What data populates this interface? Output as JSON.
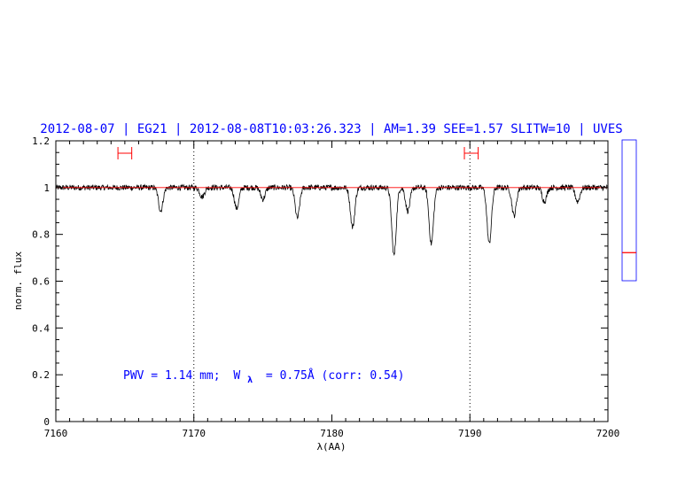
{
  "colors": {
    "axis": "#000000",
    "title": "#0000ff",
    "annotation": "#0000ff",
    "continuum": "#ff0000",
    "marker": "#ff0000",
    "indicator": "#0000ff",
    "spectrum": "#000000"
  },
  "chart_data": {
    "type": "line",
    "title": "2012-08-07 | EG21 | 2012-08-08T10:03:26.323 | AM=1.39 SEE=1.57 SLITW=10 | UVES",
    "xlabel": "λ(AA)",
    "ylabel": "norm. flux",
    "xlim": [
      7160,
      7200
    ],
    "ylim": [
      0,
      1.2
    ],
    "x_ticks": [
      "7160",
      "7170",
      "7180",
      "7190",
      "7200"
    ],
    "y_ticks": [
      "0",
      "0.2",
      "0.4",
      "0.6",
      "0.8",
      "1",
      "1.2"
    ],
    "grid": false,
    "reference_lines": [
      7170,
      7190
    ],
    "continuum_level": 1.0,
    "annotation": {
      "pwv": "PWV = 1.14 mm;",
      "w_symbol": "W",
      "w_subscript": "λ",
      "w_value": "= 0.75Å (corr: 0.54)"
    },
    "continuum_windows": [
      [
        7164.5,
        7165.5
      ],
      [
        7189.6,
        7190.6
      ]
    ],
    "absorption_lines": [
      {
        "x": 7167.6,
        "depth": 0.1
      },
      {
        "x": 7170.6,
        "depth": 0.04
      },
      {
        "x": 7173.1,
        "depth": 0.09
      },
      {
        "x": 7175.0,
        "depth": 0.05
      },
      {
        "x": 7177.5,
        "depth": 0.13
      },
      {
        "x": 7181.5,
        "depth": 0.17
      },
      {
        "x": 7184.5,
        "depth": 0.29
      },
      {
        "x": 7185.5,
        "depth": 0.1
      },
      {
        "x": 7187.2,
        "depth": 0.24
      },
      {
        "x": 7191.4,
        "depth": 0.24
      },
      {
        "x": 7193.2,
        "depth": 0.12
      },
      {
        "x": 7195.4,
        "depth": 0.06
      },
      {
        "x": 7197.8,
        "depth": 0.06
      }
    ],
    "indicator_values": [
      0.66,
      0.67
    ]
  }
}
